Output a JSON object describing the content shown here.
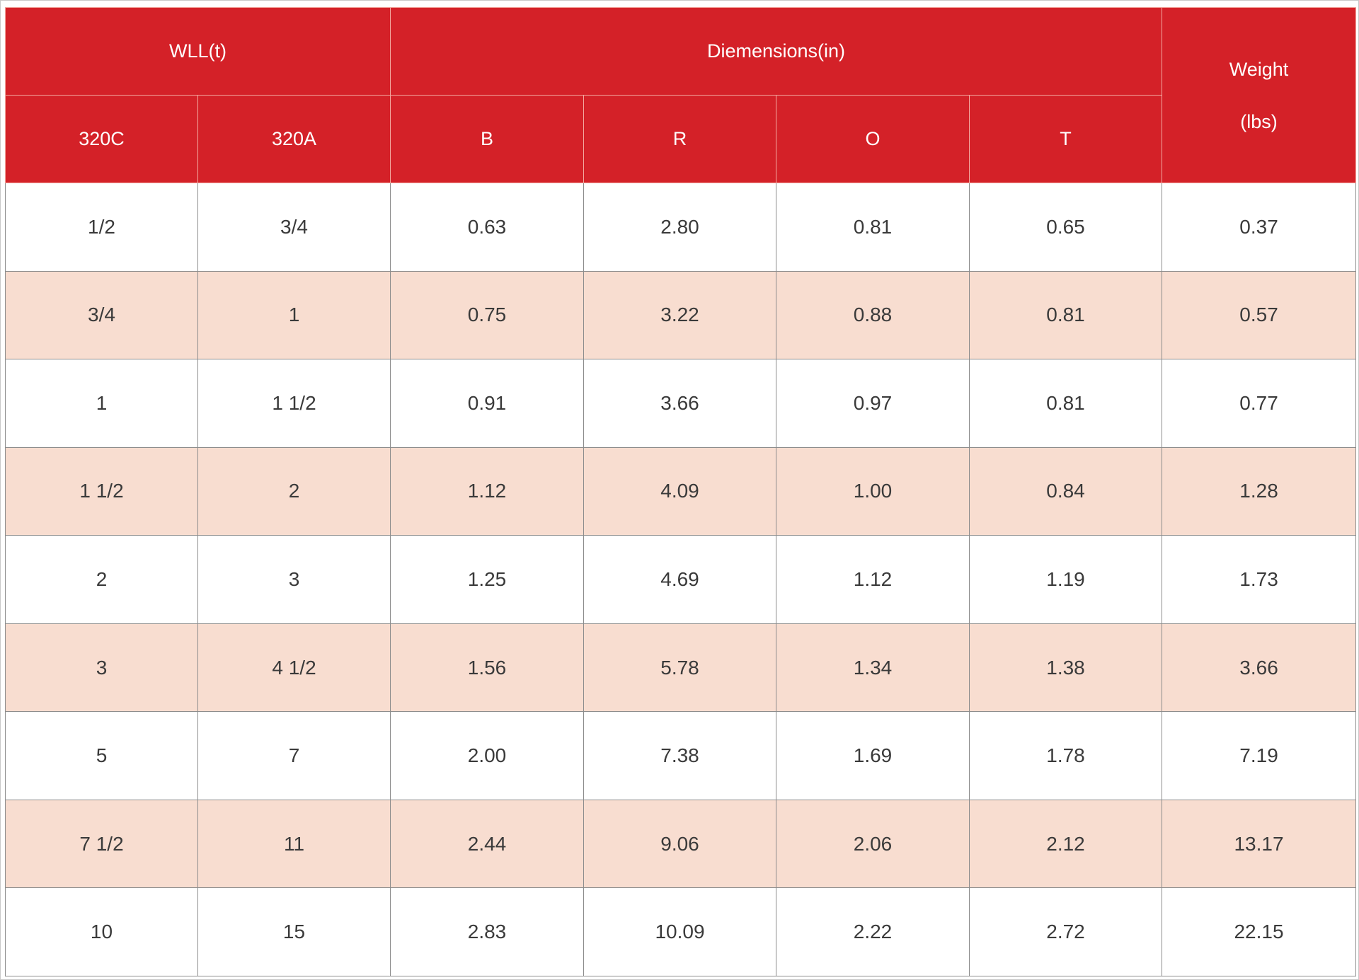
{
  "table": {
    "group_headers": {
      "wll": "WLL(t)",
      "dimensions": "Diemensions(in)",
      "weight_line1": "Weight",
      "weight_line2": "(lbs)"
    },
    "sub_headers": [
      "320C",
      "320A",
      "B",
      "R",
      "O",
      "T"
    ],
    "rows": [
      [
        "1/2",
        "3/4",
        "0.63",
        "2.80",
        "0.81",
        "0.65",
        "0.37"
      ],
      [
        "3/4",
        "1",
        "0.75",
        "3.22",
        "0.88",
        "0.81",
        "0.57"
      ],
      [
        "1",
        "1 1/2",
        "0.91",
        "3.66",
        "0.97",
        "0.81",
        "0.77"
      ],
      [
        "1 1/2",
        "2",
        "1.12",
        "4.09",
        "1.00",
        "0.84",
        "1.28"
      ],
      [
        "2",
        "3",
        "1.25",
        "4.69",
        "1.12",
        "1.19",
        "1.73"
      ],
      [
        "3",
        "4 1/2",
        "1.56",
        "5.78",
        "1.34",
        "1.38",
        "3.66"
      ],
      [
        "5",
        "7",
        "2.00",
        "7.38",
        "1.69",
        "1.78",
        "7.19"
      ],
      [
        "7 1/2",
        "11",
        "2.44",
        "9.06",
        "2.06",
        "2.12",
        "13.17"
      ],
      [
        "10",
        "15",
        "2.83",
        "10.09",
        "2.22",
        "2.72",
        "22.15"
      ]
    ]
  },
  "colors": {
    "header_red": "#d42128",
    "row_alt_peach": "#f8ddd0",
    "row_white": "#ffffff"
  }
}
